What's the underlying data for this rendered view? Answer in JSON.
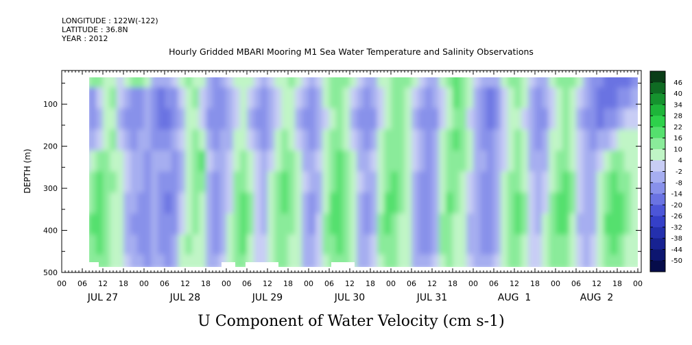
{
  "header": {
    "longitude": "LONGITUDE : 122W(-122)",
    "latitude": "LATITUDE : 36.8N",
    "year": "YEAR : 2012"
  },
  "chart_data": {
    "type": "heatmap",
    "title": "Hourly Gridded MBARI Mooring M1 Sea Water Temperature and Salinity Observations",
    "xlabel": "U Component of Water Velocity (cm s-1)",
    "ylabel": "DEPTH (m)",
    "ylim": [
      500,
      20
    ],
    "y_ticks": [
      "100",
      "200",
      "300",
      "400",
      "500"
    ],
    "x_range_hours": [
      0,
      168
    ],
    "x_hour_ticks": [
      "00",
      "06",
      "12",
      "18",
      "00",
      "06",
      "12",
      "18",
      "00",
      "06",
      "12",
      "18",
      "00",
      "06",
      "12",
      "18",
      "00",
      "06",
      "12",
      "18",
      "00",
      "06",
      "12",
      "18",
      "00",
      "06",
      "12",
      "18",
      "00"
    ],
    "x_day_labels": [
      "JUL 27",
      "JUL 28",
      "JUL 29",
      "JUL 30",
      "JUL 31",
      "AUG  1",
      "AUG  2"
    ],
    "colorbar_levels": [
      "46",
      "40",
      "34",
      "28",
      "22",
      "16",
      "10",
      "4",
      "-2",
      "-8",
      "-14",
      "-20",
      "-26",
      "-32",
      "-38",
      "-44",
      "-50"
    ],
    "colorbar_colors": [
      "#0a3d17",
      "#0f6b23",
      "#15922e",
      "#1eb53a",
      "#2ed14b",
      "#55e06e",
      "#8aeb9a",
      "#c0f5c6",
      "#c8cdf5",
      "#a6aef0",
      "#8891ea",
      "#6a73e2",
      "#4c56d8",
      "#3540c8",
      "#2430ae",
      "#172291",
      "#0d1670",
      "#060c4a"
    ],
    "grid": false,
    "legend": "colorbar-right",
    "column_hours": [
      7,
      9,
      11,
      13,
      15,
      17,
      19,
      21,
      23,
      25,
      27,
      29,
      31,
      33,
      35,
      37,
      39,
      41,
      43,
      45,
      47,
      49,
      51,
      53,
      55,
      57,
      59,
      61,
      63,
      65,
      67,
      69,
      71,
      73,
      75,
      77,
      79,
      81,
      83,
      85,
      87,
      89,
      91,
      93,
      95,
      97,
      99,
      101,
      103,
      105,
      107,
      109,
      111,
      113,
      115,
      117,
      119,
      121,
      123,
      125,
      127,
      129,
      131,
      133,
      135,
      137,
      139,
      141,
      143,
      145,
      147,
      149,
      151,
      153,
      155,
      157,
      159,
      161,
      163,
      165,
      167
    ],
    "row_depths": [
      35,
      85,
      135,
      185,
      235,
      285,
      335,
      385,
      435,
      480
    ],
    "values": [
      [
        2,
        8,
        10,
        6,
        2,
        -4,
        4,
        8,
        10,
        4,
        -6,
        -10,
        -8,
        -4,
        4,
        8,
        6,
        2,
        -6,
        -12,
        -10,
        -4,
        2,
        6,
        4,
        -2,
        -8,
        -4,
        2,
        6,
        8,
        4,
        -2,
        -6,
        -4,
        2,
        8,
        12,
        10,
        4,
        -2,
        -8,
        -6,
        2,
        6,
        10,
        12,
        8,
        2,
        -4,
        -8,
        -6,
        2,
        8,
        14,
        12,
        6,
        -2,
        -8,
        -10,
        -6,
        2,
        8,
        10,
        6,
        -2,
        -8,
        -6,
        2,
        8,
        12,
        8,
        2,
        -6,
        -12,
        -16,
        -18,
        -20,
        -22,
        -20,
        -14
      ],
      [
        -6,
        -12,
        -4,
        6,
        8,
        -2,
        -10,
        -14,
        -12,
        -6,
        -14,
        -18,
        -16,
        -12,
        -4,
        4,
        8,
        -2,
        -10,
        -16,
        -14,
        -8,
        -2,
        4,
        -4,
        -10,
        -14,
        -8,
        -2,
        4,
        6,
        -4,
        -10,
        -14,
        -8,
        2,
        8,
        12,
        6,
        -4,
        -10,
        -14,
        -10,
        -2,
        6,
        10,
        12,
        4,
        -4,
        -10,
        -14,
        -10,
        -2,
        6,
        14,
        10,
        2,
        -6,
        -14,
        -18,
        -12,
        -2,
        6,
        8,
        2,
        -8,
        -14,
        -10,
        -2,
        6,
        10,
        4,
        -4,
        -10,
        -16,
        -18,
        -20,
        -18,
        -16,
        -12,
        -8
      ],
      [
        -10,
        -14,
        -8,
        2,
        4,
        -6,
        -12,
        -16,
        -14,
        -10,
        -16,
        -20,
        -18,
        -14,
        -8,
        2,
        6,
        -4,
        -12,
        -16,
        -14,
        -10,
        -4,
        2,
        -6,
        -12,
        -16,
        -10,
        -4,
        2,
        4,
        -6,
        -12,
        -16,
        -10,
        -2,
        6,
        10,
        4,
        -6,
        -12,
        -16,
        -12,
        -4,
        4,
        8,
        10,
        2,
        -6,
        -12,
        -16,
        -12,
        -4,
        4,
        12,
        8,
        -2,
        -10,
        -16,
        -18,
        -14,
        -4,
        4,
        6,
        -2,
        -10,
        -16,
        -12,
        -4,
        4,
        8,
        2,
        -6,
        -12,
        -16,
        -18,
        -16,
        -12,
        -8,
        -4,
        -2
      ],
      [
        -8,
        -10,
        -4,
        6,
        8,
        -2,
        -8,
        -12,
        -10,
        -8,
        -12,
        -14,
        -12,
        -10,
        -4,
        4,
        8,
        2,
        -8,
        -12,
        -10,
        -6,
        2,
        6,
        -2,
        -8,
        -12,
        -6,
        2,
        8,
        6,
        -2,
        -8,
        -12,
        -6,
        2,
        8,
        12,
        6,
        -2,
        -8,
        -12,
        -8,
        2,
        8,
        10,
        12,
        6,
        -2,
        -8,
        -12,
        -8,
        2,
        8,
        14,
        10,
        2,
        -6,
        -12,
        -14,
        -10,
        -2,
        6,
        8,
        2,
        -6,
        -12,
        -8,
        2,
        6,
        10,
        4,
        -4,
        -8,
        -12,
        -10,
        -6,
        -2,
        2,
        4,
        2
      ],
      [
        -2,
        4,
        8,
        10,
        6,
        2,
        -4,
        -8,
        -10,
        -12,
        -6,
        -8,
        -10,
        -12,
        -8,
        2,
        10,
        14,
        -4,
        -10,
        -6,
        -2,
        6,
        10,
        4,
        -4,
        -8,
        -2,
        6,
        12,
        8,
        2,
        -6,
        -10,
        -4,
        4,
        10,
        14,
        8,
        2,
        -6,
        -10,
        -4,
        4,
        10,
        12,
        10,
        4,
        -4,
        -10,
        -12,
        -6,
        4,
        10,
        12,
        8,
        2,
        -6,
        -10,
        -12,
        -8,
        -2,
        6,
        10,
        4,
        -6,
        -10,
        -6,
        4,
        10,
        12,
        6,
        -2,
        -6,
        -8,
        -4,
        4,
        8,
        10,
        6,
        2
      ],
      [
        4,
        10,
        14,
        12,
        8,
        4,
        -2,
        -6,
        -10,
        -14,
        -8,
        -12,
        -16,
        -14,
        -6,
        4,
        12,
        10,
        -6,
        -12,
        -8,
        -4,
        8,
        12,
        6,
        -2,
        -6,
        2,
        8,
        14,
        10,
        4,
        -4,
        -10,
        -6,
        4,
        12,
        16,
        10,
        4,
        -4,
        -10,
        -6,
        6,
        12,
        14,
        10,
        4,
        -6,
        -12,
        -14,
        -8,
        6,
        12,
        10,
        6,
        -2,
        -8,
        -12,
        -14,
        -8,
        2,
        8,
        12,
        6,
        -4,
        -10,
        -4,
        6,
        12,
        14,
        8,
        -2,
        -8,
        -6,
        2,
        10,
        14,
        12,
        8,
        4
      ],
      [
        6,
        12,
        16,
        10,
        6,
        2,
        -6,
        -10,
        -14,
        -16,
        -10,
        -14,
        -18,
        -14,
        -4,
        6,
        10,
        6,
        -8,
        -14,
        -10,
        -2,
        10,
        14,
        8,
        -4,
        -8,
        2,
        10,
        14,
        10,
        2,
        -6,
        -12,
        -6,
        6,
        14,
        18,
        12,
        4,
        -6,
        -12,
        -8,
        6,
        14,
        14,
        8,
        2,
        -8,
        -14,
        -16,
        -10,
        6,
        14,
        8,
        4,
        -4,
        -10,
        -14,
        -16,
        -10,
        4,
        10,
        14,
        8,
        -2,
        -8,
        -2,
        8,
        14,
        16,
        8,
        -4,
        -10,
        -8,
        4,
        12,
        16,
        14,
        10,
        4
      ],
      [
        8,
        14,
        18,
        12,
        6,
        2,
        -8,
        -12,
        -14,
        -16,
        -10,
        -14,
        -16,
        -12,
        -2,
        6,
        8,
        4,
        -10,
        -14,
        -8,
        2,
        12,
        16,
        8,
        -2,
        -6,
        4,
        10,
        12,
        8,
        2,
        -8,
        -12,
        -4,
        8,
        14,
        16,
        12,
        4,
        -8,
        -12,
        -6,
        8,
        14,
        12,
        6,
        2,
        -10,
        -14,
        -14,
        -8,
        8,
        12,
        6,
        2,
        -6,
        -10,
        -14,
        -14,
        -8,
        6,
        12,
        14,
        8,
        -2,
        -6,
        2,
        10,
        14,
        14,
        6,
        -6,
        -10,
        -6,
        6,
        14,
        18,
        14,
        8,
        2
      ],
      [
        10,
        12,
        14,
        10,
        6,
        2,
        -6,
        -10,
        -12,
        -14,
        -8,
        -12,
        -14,
        -10,
        2,
        8,
        6,
        2,
        -8,
        -12,
        -6,
        4,
        12,
        14,
        6,
        -2,
        -4,
        6,
        10,
        10,
        6,
        2,
        -8,
        -10,
        -2,
        8,
        12,
        14,
        10,
        2,
        -8,
        -10,
        -4,
        8,
        12,
        10,
        6,
        2,
        -8,
        -12,
        -12,
        -6,
        8,
        10,
        6,
        2,
        -6,
        -10,
        -12,
        -12,
        -6,
        6,
        10,
        12,
        6,
        -2,
        -4,
        4,
        10,
        12,
        12,
        6,
        -4,
        -8,
        -4,
        6,
        12,
        16,
        12,
        6,
        2
      ],
      [
        8,
        10,
        12,
        8,
        4,
        2,
        -4,
        -8,
        -10,
        -12,
        -6,
        -10,
        -12,
        -8,
        2,
        6,
        4,
        2,
        -6,
        -10,
        -4,
        4,
        10,
        12,
        6,
        -2,
        -4,
        4,
        8,
        8,
        4,
        2,
        -6,
        -8,
        -2,
        6,
        10,
        12,
        8,
        2,
        -6,
        -8,
        -2,
        6,
        10,
        8,
        4,
        2,
        -6,
        -10,
        -10,
        -4,
        6,
        8,
        4,
        2,
        -4,
        -8,
        -10,
        -10,
        -4,
        4,
        8,
        10,
        4,
        -2,
        -2,
        4,
        8,
        10,
        10,
        4,
        -2,
        -6,
        -2,
        4,
        10,
        12,
        10,
        4,
        2
      ]
    ]
  }
}
